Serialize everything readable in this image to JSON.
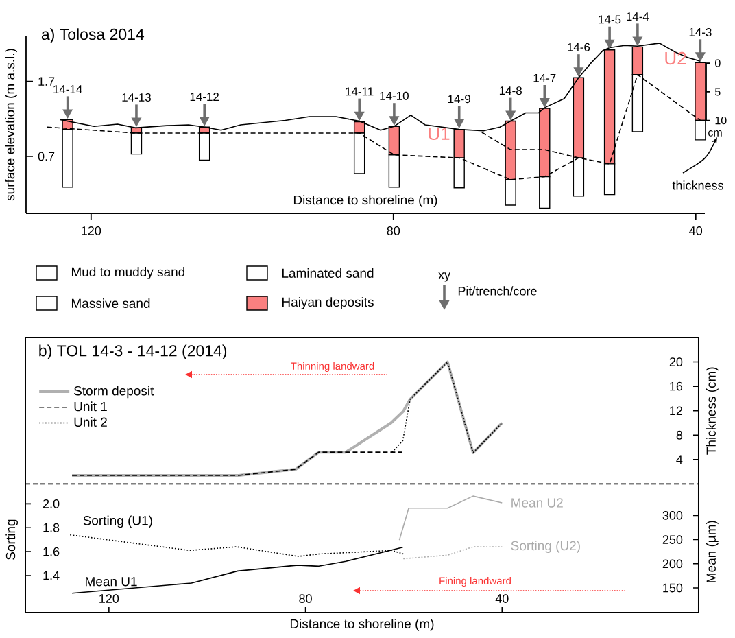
{
  "chart_data": [
    {
      "type": "bar",
      "title": "a) Tolosa 2014",
      "xlabel": "Distance to shoreline (m)",
      "ylabel": "surface elevation (m a.s.l.)",
      "y2label": "cm",
      "x": [
        123.1,
        114.0,
        105.0,
        84.5,
        79.9,
        71.3,
        64.5,
        60.0,
        55.5,
        51.4,
        47.7,
        39.4
      ],
      "series": [
        {
          "name": "Mud to muddy sand",
          "color": "#ffffff",
          "values": [
            null,
            null,
            null,
            null,
            null,
            null,
            null,
            null,
            null,
            null,
            null,
            null
          ]
        },
        {
          "name": "Massive sand",
          "color": "#ffffff",
          "values": [
            null,
            null,
            null,
            null,
            null,
            null,
            null,
            null,
            null,
            null,
            null,
            null
          ]
        },
        {
          "name": "Laminated sand",
          "color": "#ffffff",
          "values": [
            null,
            null,
            null,
            null,
            null,
            null,
            null,
            null,
            null,
            null,
            null,
            null
          ]
        },
        {
          "name": "Haiyan deposits",
          "color": "#fa8080",
          "base": [
            1.06,
            1.01,
            1.01,
            1.01,
            0.72,
            0.68,
            0.39,
            0.43,
            0.68,
            0.6,
            1.79,
            1.18
          ],
          "values": [
            0.13,
            0.07,
            0.08,
            0.15,
            0.38,
            0.38,
            0.78,
            0.91,
            1.07,
            1.52,
            0.37,
            0.77
          ]
        },
        {
          "color": "#ffffff",
          "base": [
            0.29,
            0.73,
            0.65,
            0.47,
            0.29,
            0.28,
            0.05,
            0.01,
            0.17,
            0.19,
            1.03,
            0.92
          ],
          "values": [
            0.77,
            0.28,
            0.36,
            0.54,
            0.43,
            0.4,
            0.34,
            0.42,
            0.51,
            0.41,
            0.76,
            0.26
          ]
        },
        {
          "type": "line",
          "color": "#000000",
          "x": [
            124.1,
            119.6,
            116.5,
            114.1,
            110.0,
            107.1,
            105.0,
            102.8,
            100.2,
            94.3,
            91.1,
            87.6,
            84.5,
            81.7,
            79.9,
            77.7,
            75.8,
            71.3,
            68.1,
            65.9,
            64.5,
            62.5,
            60.8,
            60.0,
            57.4,
            55.5,
            53.9,
            52.3,
            51.4,
            49.4,
            47.7,
            44.8,
            42.7,
            41.1,
            39.4
          ],
          "values": [
            1.19,
            1.1,
            1.13,
            1.08,
            1.11,
            1.12,
            1.09,
            1.05,
            1.12,
            1.18,
            1.23,
            1.23,
            1.17,
            1.05,
            1.1,
            1.25,
            1.12,
            1.06,
            1.04,
            1.09,
            1.17,
            1.28,
            1.28,
            1.35,
            1.47,
            1.75,
            1.94,
            2.11,
            2.15,
            2.18,
            2.17,
            2.21,
            2.09,
            2.02,
            1.97
          ]
        },
        {
          "type": "line",
          "color": "#000000",
          "line_style": "dashed",
          "x": [
            125.8,
            114.0,
            84.5,
            79.9,
            71.3,
            64.5,
            60.0,
            55.5,
            51.4,
            47.7,
            39.4
          ],
          "values": [
            1.09,
            1.01,
            1.01,
            0.72,
            0.68,
            0.39,
            0.43,
            0.68,
            0.6,
            1.79,
            1.18
          ]
        },
        {
          "type": "line",
          "color": "#000000",
          "line_style": "dashed",
          "x": [
            68.3,
            64.5,
            60.0,
            55.5
          ],
          "values": [
            1.02,
            0.79,
            0.79,
            0.68
          ]
        }
      ],
      "xlim": [
        128.6,
        38.8
      ],
      "ylim": [
        -0.06,
        2.31
      ],
      "y2lim": [
        26.2,
        -4.8
      ],
      "xticks": [
        120,
        80,
        40
      ],
      "yticks": [
        0.7,
        1.7
      ],
      "y2ticks": [
        0,
        5,
        10
      ],
      "legend": "bottom",
      "annotations": [
        {
          "text": "14-14",
          "x": 123.1,
          "y": 1.19
        },
        {
          "text": "14-13",
          "x": 114.0,
          "y": 1.08
        },
        {
          "text": "14-12",
          "x": 105.0,
          "y": 1.09
        },
        {
          "text": "14-11",
          "x": 84.5,
          "y": 1.16
        },
        {
          "text": "14-10",
          "x": 79.9,
          "y": 1.1
        },
        {
          "text": "14-9",
          "x": 71.3,
          "y": 1.06
        },
        {
          "text": "14-8",
          "x": 64.5,
          "y": 1.17
        },
        {
          "text": "14-7",
          "x": 60.0,
          "y": 1.34
        },
        {
          "text": "14-6",
          "x": 55.5,
          "y": 1.75
        },
        {
          "text": "14-5",
          "x": 51.4,
          "y": 2.12
        },
        {
          "text": "14-4",
          "x": 47.7,
          "y": 2.16
        },
        {
          "text": "14-3",
          "x": 39.4,
          "y": 1.95
        },
        "U1",
        "U2",
        "thickness",
        "xy",
        "Pit/trench/core"
      ]
    },
    {
      "type": "line",
      "title": "b) TOL 14-3 - 14-12 (2014)",
      "xlabel": "Distance to shoreline (m)",
      "ylabel": "Sorting",
      "y2label": "Thickness (cm)",
      "y3label": "Mean (µm)",
      "series": [
        {
          "name": "Storm deposit",
          "color": "#b0b0b0",
          "axis": "y2",
          "x": [
            127.5,
            93.6,
            82.0,
            77.3,
            71.8,
            62.6,
            60.1,
            58.7,
            51.1,
            45.9,
            40.0
          ],
          "values": [
            1.4,
            1.4,
            2.4,
            5.2,
            5.2,
            10.0,
            11.9,
            13.9,
            20.0,
            5.1,
            10.0
          ]
        },
        {
          "name": "Unit 1",
          "color": "#000000",
          "axis": "y2",
          "line_style": "dashed",
          "x": [
            127.5,
            93.6,
            82.0,
            77.3,
            71.8,
            60.3
          ],
          "values": [
            1.4,
            1.4,
            2.4,
            5.2,
            5.2,
            5.2
          ]
        },
        {
          "name": "Unit 2",
          "color": "#000000",
          "axis": "y2",
          "line_style": "dotted",
          "x": [
            62.4,
            60.2,
            58.7,
            51.1,
            45.9,
            40.0
          ],
          "values": [
            5.2,
            7.1,
            13.9,
            20.0,
            5.1,
            10.0
          ]
        },
        {
          "name": "Sorting (U1)",
          "color": "#000000",
          "line_style": "dotted",
          "x": [
            127.9,
            103.6,
            94.0,
            81.5,
            77.3,
            62.4,
            60.1
          ],
          "values": [
            1.74,
            1.61,
            1.64,
            1.56,
            1.58,
            1.61,
            1.58
          ]
        },
        {
          "name": "Sorting (U2)",
          "color": "#aaaaaa",
          "line_style": "dotted",
          "x": [
            60.1,
            51.1,
            45.9,
            40.0
          ],
          "values": [
            1.54,
            1.57,
            1.64,
            1.64
          ]
        },
        {
          "name": "Mean U1",
          "color": "#000000",
          "axis": "y3",
          "x": [
            127.5,
            103.2,
            93.8,
            81.6,
            77.3,
            71.8,
            60.2
          ],
          "values": [
            139,
            160,
            185,
            197,
            195,
            205,
            234
          ]
        },
        {
          "name": "Mean U2",
          "color": "#aaaaaa",
          "axis": "y3",
          "x": [
            60.9,
            59.0,
            51.1,
            45.9,
            40.0
          ],
          "values": [
            249,
            315,
            315,
            340,
            326
          ]
        }
      ],
      "xlim": [
        137,
        0
      ],
      "xticks": [
        120,
        80,
        40
      ],
      "ylim": [
        1.09,
        3.39
      ],
      "yticks": [
        1.4,
        1.6,
        1.8,
        {
          "value": 2.0,
          "label": "2.0"
        }
      ],
      "y2lim": [
        -21.1,
        24.0
      ],
      "y2ticks": [
        4,
        8,
        12,
        16,
        20
      ],
      "y3lim": [
        99,
        668
      ],
      "y3ticks": [
        150,
        200,
        250,
        300
      ],
      "ref_lines": [
        {
          "axis": "y2",
          "value": 0,
          "line_style": "dashed"
        }
      ],
      "legend": "top left",
      "annotations": [
        "Thinning landward",
        "Fining landward"
      ]
    }
  ]
}
